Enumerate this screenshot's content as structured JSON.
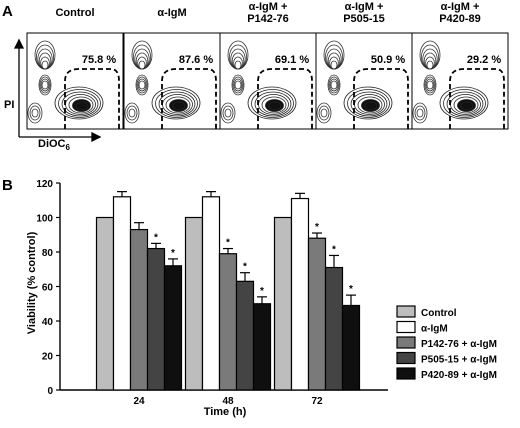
{
  "panel_a": {
    "label": "A",
    "y_axis_label": "PI",
    "x_axis_label_main": "DiOC",
    "x_axis_label_sub": "6",
    "plots": [
      {
        "title_lines": [
          "Control"
        ],
        "percent": "75.8 %"
      },
      {
        "title_lines": [
          "α-IgM"
        ],
        "percent": "87.6 %"
      },
      {
        "title_lines": [
          "α-IgM +",
          "P142-76"
        ],
        "percent": "69.1 %"
      },
      {
        "title_lines": [
          "α-IgM +",
          "P505-15"
        ],
        "percent": "50.9 %"
      },
      {
        "title_lines": [
          "α-IgM +",
          "P420-89"
        ],
        "percent": "29.2 %"
      }
    ]
  },
  "panel_b": {
    "label": "B",
    "significance_marker": "*"
  },
  "chart_data": {
    "type": "bar",
    "xlabel": "Time (h)",
    "ylabel": "Viability (% control)",
    "ylim": [
      0,
      120
    ],
    "yticks": [
      0,
      20,
      40,
      60,
      80,
      100,
      120
    ],
    "categories": [
      "24",
      "48",
      "72"
    ],
    "legend_position": "right",
    "series": [
      {
        "name": "Control",
        "color": "#bdbdbd",
        "values": [
          100,
          100,
          100
        ],
        "errors": [
          0,
          0,
          0
        ],
        "significant": [
          false,
          false,
          false
        ]
      },
      {
        "name": "α-IgM",
        "color": "#ffffff",
        "values": [
          112,
          112,
          111
        ],
        "errors": [
          3,
          3,
          3
        ],
        "significant": [
          false,
          false,
          false
        ]
      },
      {
        "name": "P142-76 + α-IgM",
        "color": "#7a7a7a",
        "values": [
          93,
          79,
          88
        ],
        "errors": [
          4,
          3,
          3
        ],
        "significant": [
          false,
          true,
          true
        ]
      },
      {
        "name": "P505-15 + α-IgM",
        "color": "#444444",
        "values": [
          82,
          63,
          71
        ],
        "errors": [
          3,
          5,
          7
        ],
        "significant": [
          true,
          true,
          true
        ]
      },
      {
        "name": "P420-89 + α-IgM",
        "color": "#0f0f0f",
        "values": [
          72,
          50,
          49
        ],
        "errors": [
          4,
          4,
          6
        ],
        "significant": [
          true,
          true,
          true
        ]
      }
    ]
  }
}
